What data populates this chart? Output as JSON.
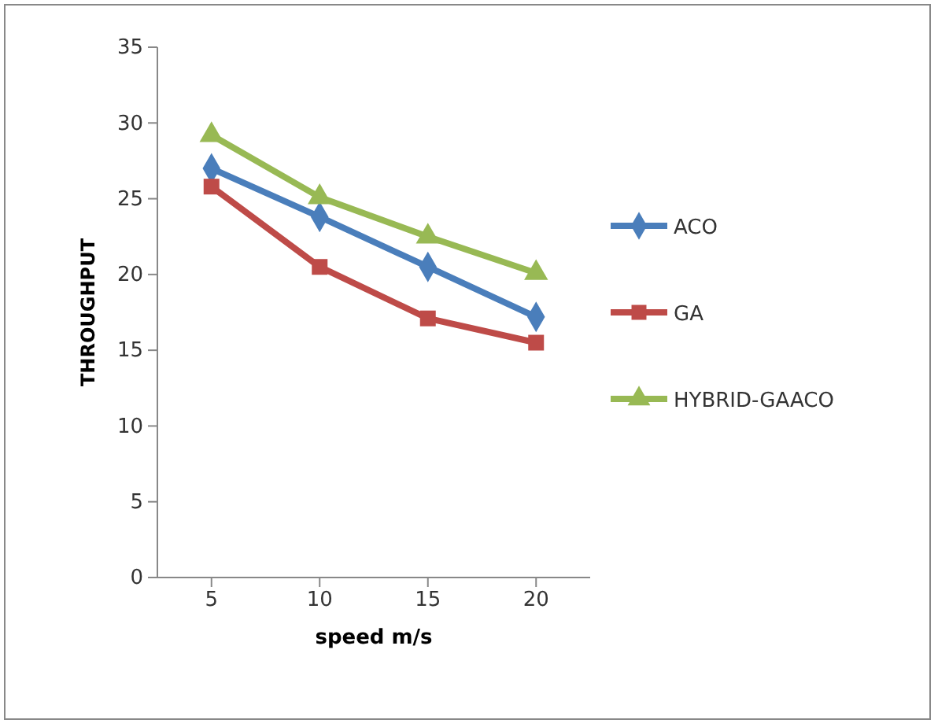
{
  "chart_data": {
    "type": "line",
    "xlabel": "speed m/s",
    "ylabel": "THROUGHPUT",
    "categories": [
      "5",
      "10",
      "15",
      "20"
    ],
    "ylim": [
      0,
      35
    ],
    "yticks": [
      0,
      5,
      10,
      15,
      20,
      25,
      30,
      35
    ],
    "grid": false,
    "legend": "right",
    "series": [
      {
        "name": "ACO",
        "color": "#4a7ebb",
        "marker": "diamond",
        "values": [
          27,
          23.8,
          20.5,
          17.2
        ]
      },
      {
        "name": "GA",
        "color": "#be4b48",
        "marker": "square",
        "values": [
          25.8,
          20.5,
          17.1,
          15.5
        ]
      },
      {
        "name": "HYBRID-GAACO",
        "color": "#98b954",
        "marker": "triangle",
        "values": [
          29.2,
          25.1,
          22.5,
          20.1
        ]
      }
    ]
  }
}
